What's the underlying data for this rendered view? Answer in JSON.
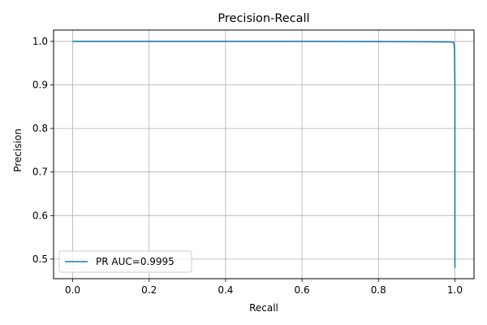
{
  "chart_data": {
    "type": "line",
    "title": "Precision-Recall",
    "xlabel": "Recall",
    "ylabel": "Precision",
    "xlim": [
      -0.05,
      1.05
    ],
    "ylim": [
      0.455,
      1.026
    ],
    "xticks": [
      0.0,
      0.2,
      0.4,
      0.6,
      0.8,
      1.0
    ],
    "xtick_labels": [
      "0.0",
      "0.2",
      "0.4",
      "0.6",
      "0.8",
      "1.0"
    ],
    "yticks": [
      0.5,
      0.6,
      0.7,
      0.8,
      0.9,
      1.0
    ],
    "ytick_labels": [
      "0.5",
      "0.6",
      "0.7",
      "0.8",
      "0.9",
      "1.0"
    ],
    "grid": true,
    "legend_position": "lower-left",
    "series": [
      {
        "name": "PR AUC=0.9995",
        "color": "#1f77b4",
        "x": [
          0.0,
          0.1,
          0.2,
          0.3,
          0.4,
          0.5,
          0.6,
          0.7,
          0.8,
          0.9,
          0.95,
          0.98,
          0.99,
          0.995,
          0.997,
          0.998,
          0.999,
          1.0,
          1.0
        ],
        "y": [
          1.0,
          1.0,
          1.0,
          1.0,
          1.0,
          1.0,
          1.0,
          0.9998,
          0.9995,
          0.9992,
          0.999,
          0.9988,
          0.9985,
          0.998,
          0.997,
          0.993,
          0.98,
          0.9,
          0.48
        ]
      }
    ]
  }
}
